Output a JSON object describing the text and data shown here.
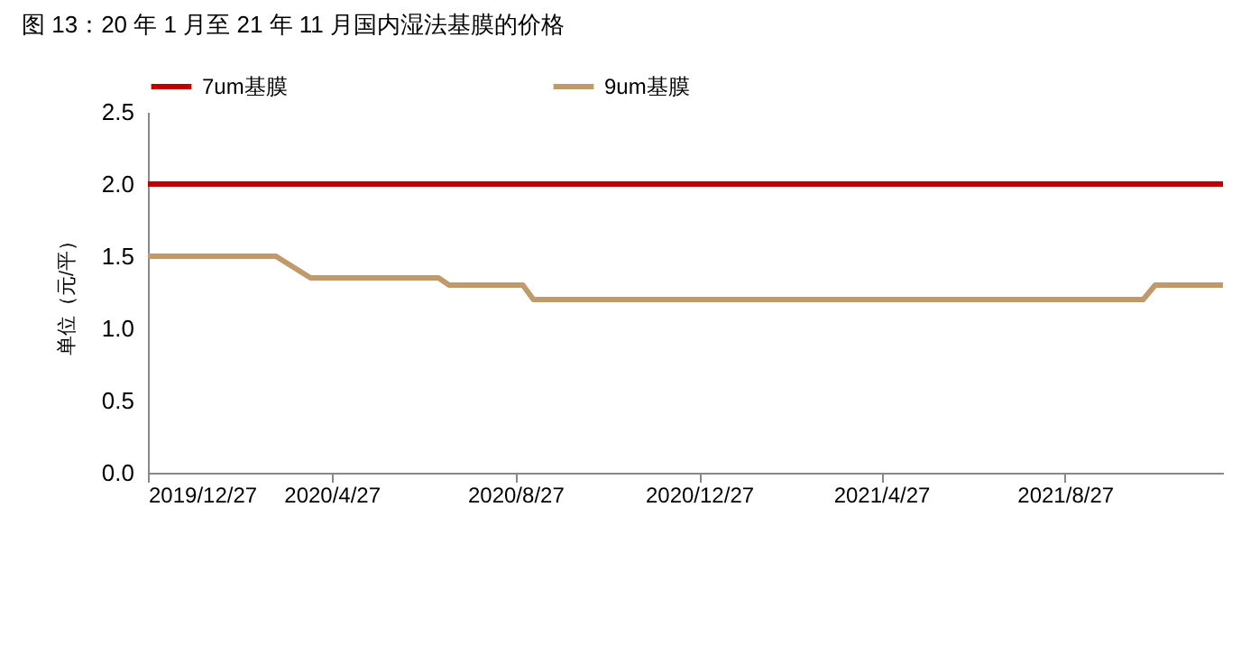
{
  "chart_data": {
    "type": "line",
    "title": "图 13：20 年 1 月至 21 年 11 月国内湿法基膜的价格",
    "ylabel": "单位（元/平）",
    "series": [
      {
        "name": "7um基膜",
        "color": "#c00000",
        "x": [
          "2019-12-27",
          "2021-12-10"
        ],
        "values": [
          2.0,
          2.0
        ]
      },
      {
        "name": "9um基膜",
        "color": "#c09a6b",
        "x": [
          "2019-12-27",
          "2020-03-21",
          "2020-04-13",
          "2020-07-07",
          "2020-07-14",
          "2020-09-01",
          "2020-09-08",
          "2021-10-18",
          "2021-10-26",
          "2021-12-10"
        ],
        "values": [
          1.5,
          1.5,
          1.35,
          1.35,
          1.3,
          1.3,
          1.2,
          1.2,
          1.3,
          1.3
        ]
      }
    ],
    "xlim": [
      "2019-12-27",
      "2021-12-10"
    ],
    "xticks": [
      {
        "value": "2019-12-27",
        "label": "2019/12/27"
      },
      {
        "value": "2020-04-27",
        "label": "2020/4/27"
      },
      {
        "value": "2020-08-27",
        "label": "2020/8/27"
      },
      {
        "value": "2020-12-27",
        "label": "2020/12/27"
      },
      {
        "value": "2021-04-27",
        "label": "2021/4/27"
      },
      {
        "value": "2021-08-27",
        "label": "2021/8/27"
      }
    ],
    "ylim": [
      0,
      2.5
    ],
    "yticks": [
      {
        "value": 0,
        "label": "0.0"
      },
      {
        "value": 0.5,
        "label": "0.5"
      },
      {
        "value": 1,
        "label": "1.0"
      },
      {
        "value": 1.5,
        "label": "1.5"
      },
      {
        "value": 2,
        "label": "2.0"
      },
      {
        "value": 2.5,
        "label": "2.5"
      }
    ],
    "grid": false,
    "legend": "top",
    "marker": "none",
    "line_style": "solid"
  }
}
